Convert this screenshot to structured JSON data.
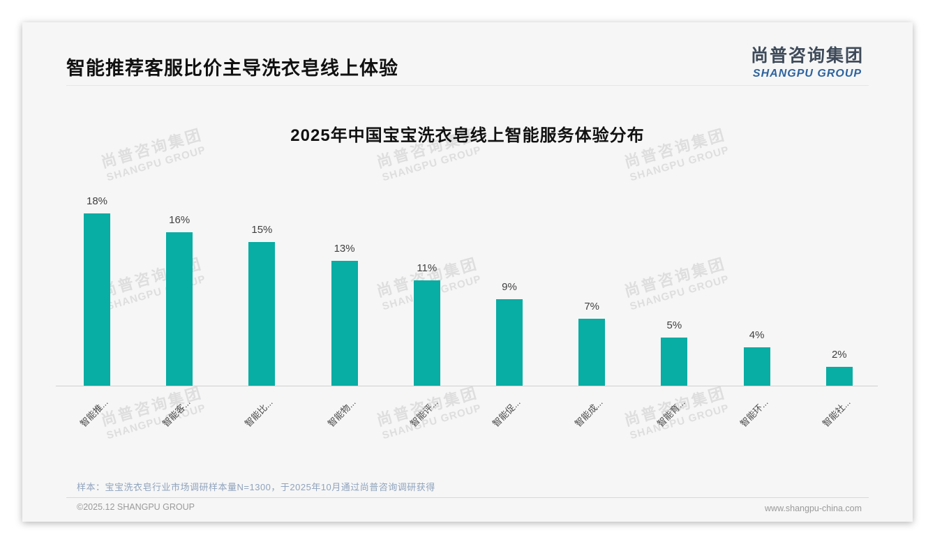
{
  "page": {
    "title": "智能推荐客服比价主导洗衣皂线上体验"
  },
  "logo": {
    "cn": "尚普咨询集团",
    "en": "SHANGPU GROUP"
  },
  "watermark": {
    "cn": "尚普咨询集团",
    "en": "SHANGPU GROUP"
  },
  "chart_data": {
    "type": "bar",
    "title": "2025年中国宝宝洗衣皂线上智能服务体验分布",
    "categories": [
      "智能推...",
      "智能客...",
      "智能比...",
      "智能物...",
      "智能评...",
      "智能促...",
      "智能成...",
      "智能育...",
      "智能环...",
      "智能社..."
    ],
    "values": [
      18,
      16,
      15,
      13,
      11,
      9,
      7,
      5,
      4,
      2
    ],
    "unit": "%",
    "value_labels": [
      "18%",
      "16%",
      "15%",
      "13%",
      "11%",
      "9%",
      "7%",
      "5%",
      "4%",
      "2%"
    ],
    "bar_color": "#08ada4",
    "ylim": [
      0,
      20
    ],
    "grid": false,
    "legend": "none",
    "xlabel": "",
    "ylabel": ""
  },
  "footer": {
    "note": "样本：宝宝洗衣皂行业市场调研样本量N=1300，于2025年10月通过尚普咨询调研获得",
    "copyright": "©2025.12 SHANGPU GROUP",
    "website": "www.shangpu-china.com"
  }
}
